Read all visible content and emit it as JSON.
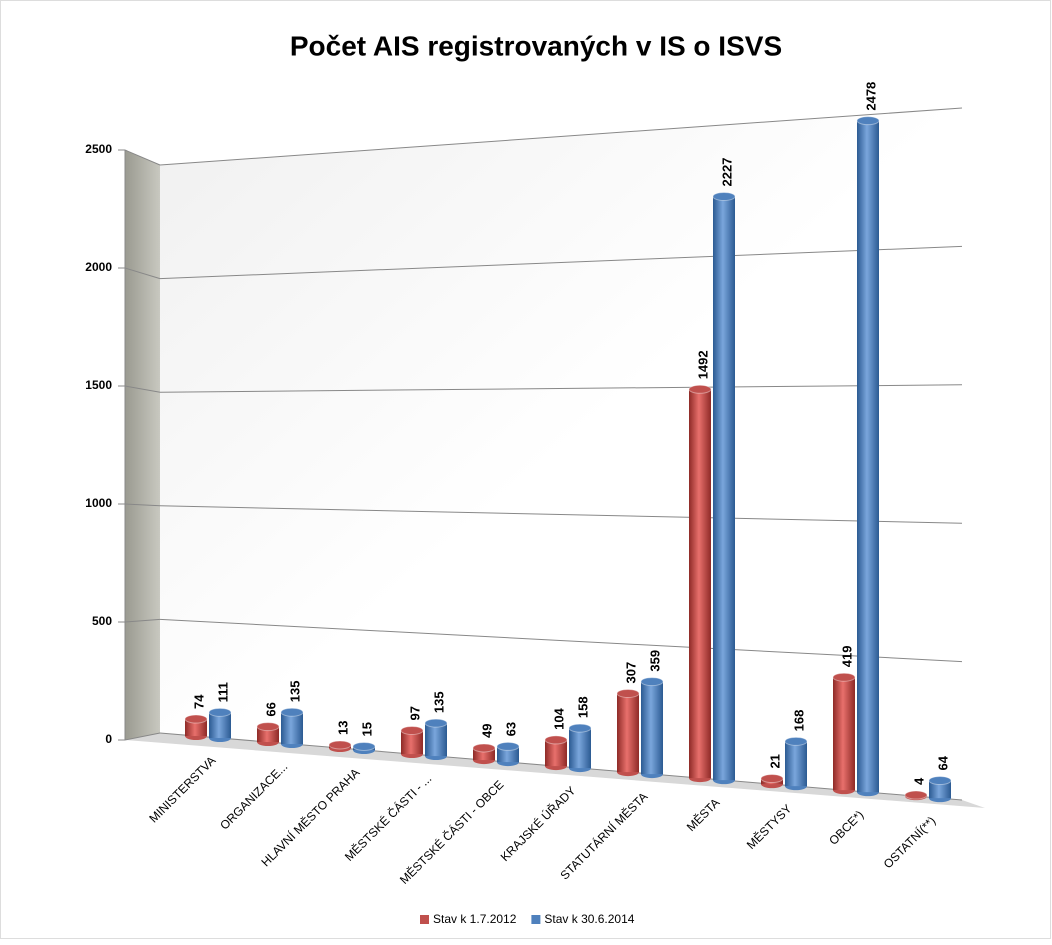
{
  "chart_data": {
    "type": "bar",
    "title": "Počet AIS registrovaných v IS o ISVS",
    "categories": [
      "MINISTERSTVA",
      "ORGANIZACE...",
      "HLAVNÍ MĚSTO PRAHA",
      "MĚSTSKÉ ČÁSTI - ...",
      "MĚSTSKÉ ČÁSTI - OBCE",
      "KRAJSKÉ ÚŘADY",
      "STATUTÁRNÍ MĚSTA",
      "MĚSTA",
      "MĚSTYSY",
      "OBCE*)",
      "OSTATNÍ(**)"
    ],
    "series": [
      {
        "name": "Stav k 1.7.2012",
        "color": "#c0504d",
        "values": [
          74,
          66,
          13,
          97,
          49,
          104,
          307,
          1492,
          21,
          419,
          4
        ]
      },
      {
        "name": "Stav k 30.6.2014",
        "color": "#4f81bd",
        "values": [
          111,
          135,
          15,
          135,
          63,
          158,
          359,
          2227,
          168,
          2478,
          64
        ]
      }
    ],
    "ylim": [
      0,
      2500
    ],
    "yticks": [
      0,
      500,
      1000,
      1500,
      2000,
      2500
    ],
    "grid": true,
    "legend": "bottom"
  }
}
